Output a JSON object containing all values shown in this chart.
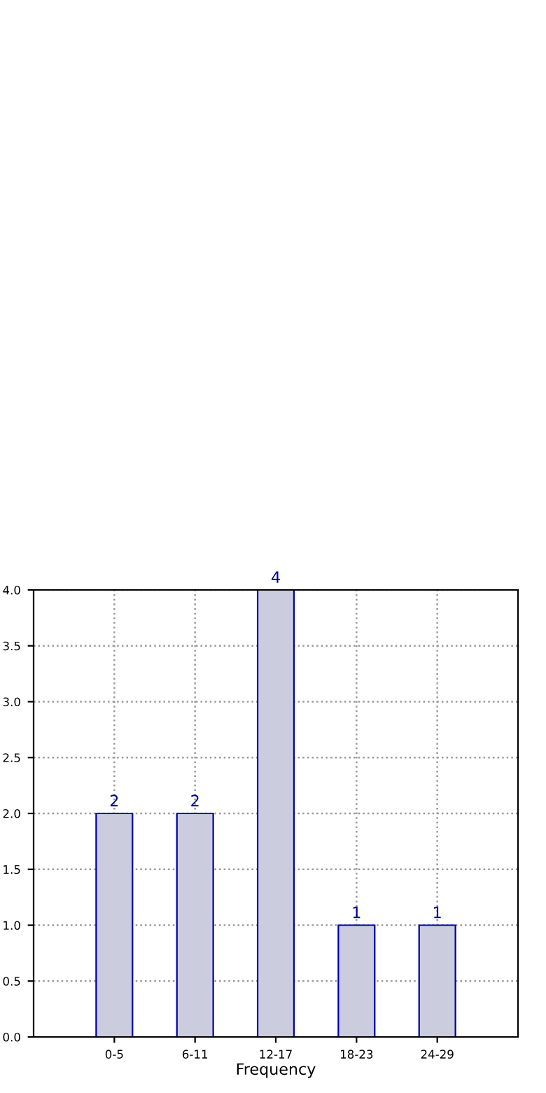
{
  "chart_data": {
    "type": "bar",
    "xlabel": "Frequency",
    "categories": [
      "0-5",
      "6-11",
      "12-17",
      "18-23",
      "24-29"
    ],
    "values": [
      2,
      2,
      4,
      1,
      1
    ],
    "color": "#ccccdf",
    "ylim": [
      0,
      4
    ],
    "yticks": [
      {
        "value": 0,
        "label": "0.0"
      },
      {
        "value": 0.5,
        "label": "0.5"
      },
      {
        "value": 1,
        "label": "1.0"
      },
      {
        "value": 1.5,
        "label": "1.5"
      },
      {
        "value": 2,
        "label": "2.0"
      },
      {
        "value": 2.5,
        "label": "2.5"
      },
      {
        "value": 3,
        "label": "3.0"
      },
      {
        "value": 3.5,
        "label": "3.5"
      },
      {
        "value": 4,
        "label": "4.0"
      }
    ],
    "grid": true,
    "data_labels": true
  }
}
